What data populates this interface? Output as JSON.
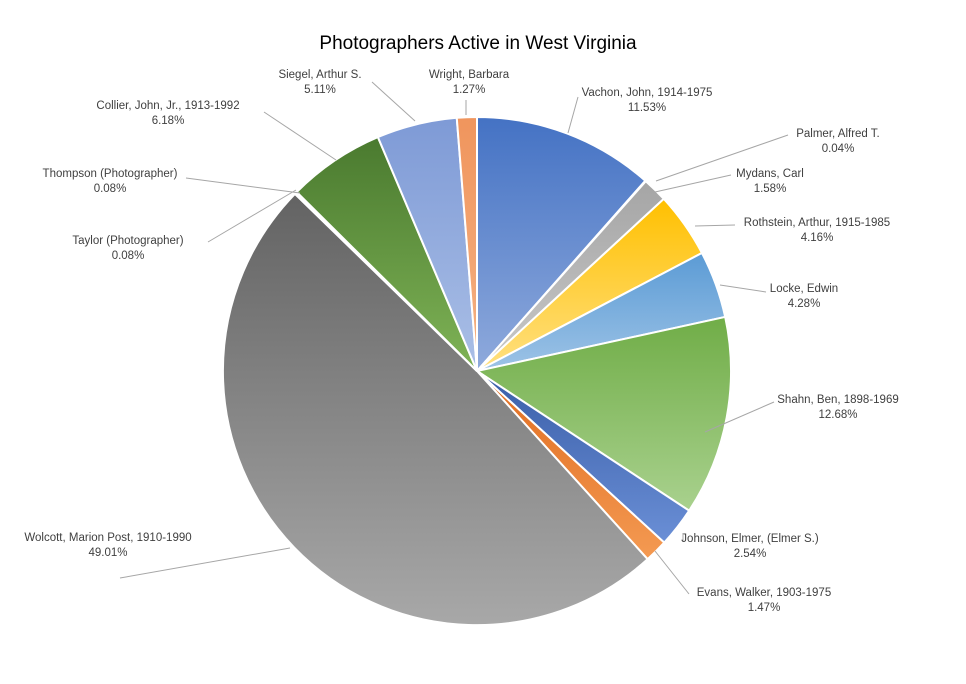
{
  "chart_data": {
    "type": "pie",
    "title": "Photographers Active in West Virginia",
    "slices": [
      {
        "name": "Vachon, John, 1914-1975",
        "percent_label": "11.53%",
        "value": 11.53,
        "color_top": "#4472c4",
        "color_bottom": "#8faadc"
      },
      {
        "name": "Palmer, Alfred T.",
        "percent_label": "0.04%",
        "value": 0.04,
        "color_top": "#ed7d31",
        "color_bottom": "#f4b183"
      },
      {
        "name": "Mydans, Carl",
        "percent_label": "1.58%",
        "value": 1.58,
        "color_top": "#a5a5a5",
        "color_bottom": "#c9c9c9"
      },
      {
        "name": "Rothstein, Arthur, 1915-1985",
        "percent_label": "4.16%",
        "value": 4.16,
        "color_top": "#ffc000",
        "color_bottom": "#ffe081"
      },
      {
        "name": "Locke, Edwin",
        "percent_label": "4.28%",
        "value": 4.28,
        "color_top": "#5b9bd5",
        "color_bottom": "#9dc3e6"
      },
      {
        "name": "Shahn, Ben, 1898-1969",
        "percent_label": "12.68%",
        "value": 12.68,
        "color_top": "#70ad47",
        "color_bottom": "#a9d18e"
      },
      {
        "name": "Johnson, Elmer, (Elmer S.)",
        "percent_label": "2.54%",
        "value": 2.54,
        "color_top": "#3a5ea8",
        "color_bottom": "#6a8fd6"
      },
      {
        "name": "Evans, Walker, 1903-1975",
        "percent_label": "1.47%",
        "value": 1.47,
        "color_top": "#e06c20",
        "color_bottom": "#f49a52"
      },
      {
        "name": "Wolcott, Marion Post, 1910-1990",
        "percent_label": "49.01%",
        "value": 49.01,
        "color_top": "#636363",
        "color_bottom": "#a8a8a8"
      },
      {
        "name": "Taylor (Photographer)",
        "percent_label": "0.08%",
        "value": 0.08,
        "color_top": "#b38f00",
        "color_bottom": "#e6c34d"
      },
      {
        "name": "Thompson (Photographer)",
        "percent_label": "0.08%",
        "value": 0.08,
        "color_top": "#3b78b5",
        "color_bottom": "#7fa9d8"
      },
      {
        "name": "Collier, John, Jr., 1913-1992",
        "percent_label": "6.18%",
        "value": 6.18,
        "color_top": "#4a7a2f",
        "color_bottom": "#7fb356"
      },
      {
        "name": "Siegel, Arthur S.",
        "percent_label": "5.11%",
        "value": 5.11,
        "color_top": "#7e9ad6",
        "color_bottom": "#aabfe6"
      },
      {
        "name": "Wright, Barbara",
        "percent_label": "1.27%",
        "value": 1.27,
        "color_top": "#f0955d",
        "color_bottom": "#f4b183"
      }
    ],
    "legend": "none",
    "data_labels": "outside-with-leader-lines"
  }
}
